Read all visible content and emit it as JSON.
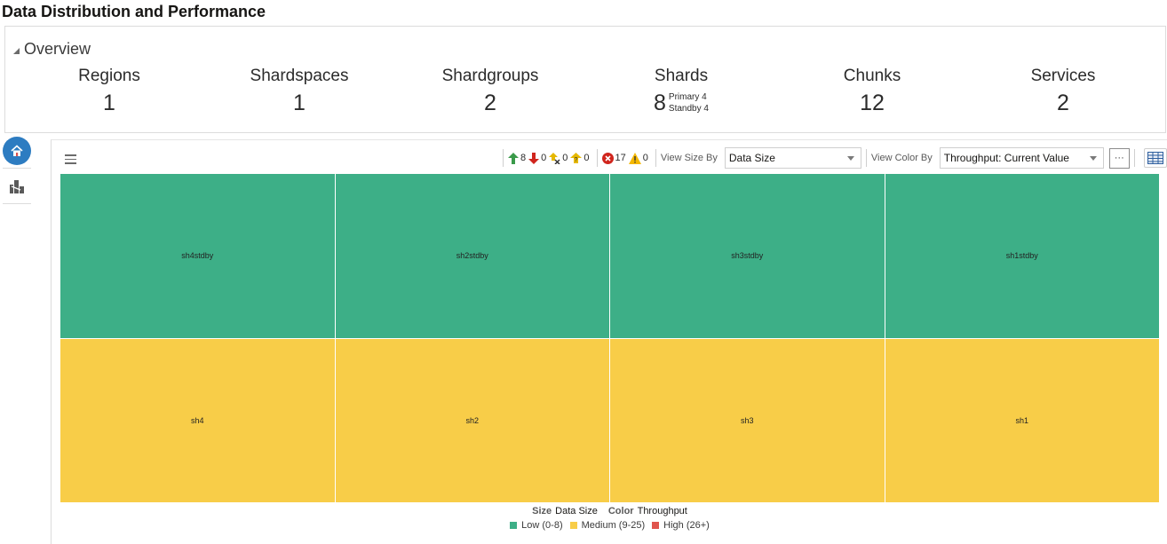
{
  "page": {
    "title": "Data Distribution and Performance"
  },
  "overview": {
    "header": "Overview",
    "metrics": [
      {
        "label": "Regions",
        "value": "1"
      },
      {
        "label": "Shardspaces",
        "value": "1"
      },
      {
        "label": "Shardgroups",
        "value": "2"
      },
      {
        "label": "Shards",
        "value": "8",
        "primary": "Primary 4",
        "standby": "Standby 4"
      },
      {
        "label": "Chunks",
        "value": "12"
      },
      {
        "label": "Services",
        "value": "2"
      }
    ]
  },
  "side_nav": {
    "items": [
      {
        "icon": "home-icon",
        "active": true
      },
      {
        "icon": "topology-icon",
        "active": false
      }
    ]
  },
  "toolbar": {
    "up_count": "8",
    "down_count": "0",
    "unknown_count": "0",
    "pending_count": "0",
    "critical_count": "17",
    "warning_count": "0",
    "view_size_label": "View Size By",
    "view_size_value": "Data Size",
    "view_color_label": "View Color By",
    "view_color_value": "Throughput: Current Value",
    "more_label": "···"
  },
  "treemap": {
    "tiles": [
      {
        "label": "sh4stdby",
        "status": "Low"
      },
      {
        "label": "sh2stdby",
        "status": "Low"
      },
      {
        "label": "sh3stdby",
        "status": "Low"
      },
      {
        "label": "sh1stdby",
        "status": "Low"
      },
      {
        "label": "sh4",
        "status": "Medium"
      },
      {
        "label": "sh2",
        "status": "Medium"
      },
      {
        "label": "sh3",
        "status": "Medium"
      },
      {
        "label": "sh1",
        "status": "Medium"
      }
    ]
  },
  "legend": {
    "size_key": "Size",
    "size_value": "Data Size",
    "color_key": "Color",
    "color_value": "Throughput",
    "items": [
      {
        "label": "Low (0-8)",
        "color": "#3daf87"
      },
      {
        "label": "Medium (9-25)",
        "color": "#f8cd48"
      },
      {
        "label": "High (26+)",
        "color": "#e0544d"
      }
    ]
  }
}
